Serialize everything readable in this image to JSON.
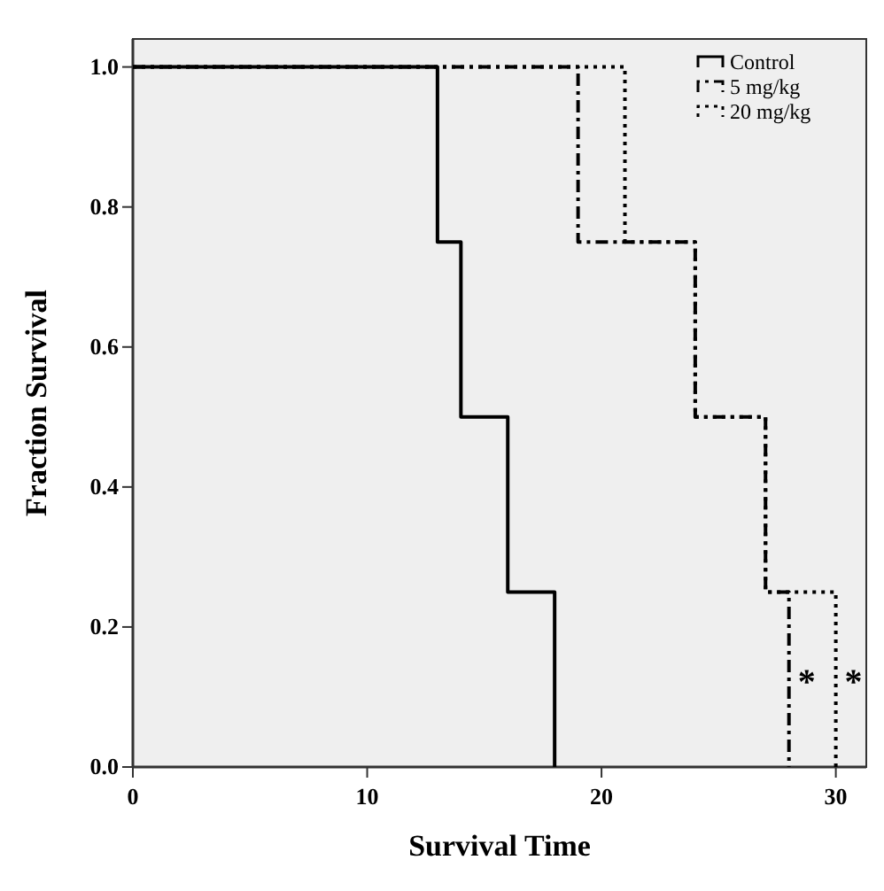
{
  "chart_data": {
    "type": "step",
    "xlabel": "Survival Time",
    "ylabel": "Fraction Survival",
    "xlim": [
      0,
      31.3
    ],
    "ylim": [
      0,
      1.04
    ],
    "xticks": [
      0,
      10,
      20,
      30
    ],
    "yticks": [
      {
        "value": 0,
        "label": "0.0"
      },
      {
        "value": 0.2,
        "label": "0.2"
      },
      {
        "value": 0.4,
        "label": "0.4"
      },
      {
        "value": 0.6,
        "label": "0.6"
      },
      {
        "value": 0.8,
        "label": "0.8"
      },
      {
        "value": 1,
        "label": "1.0"
      }
    ],
    "grid": false,
    "legend": "top right",
    "series": [
      {
        "name": "Control",
        "color": "#000000",
        "line_style": "solid",
        "x": [
          0,
          13,
          14,
          16,
          18
        ],
        "values": [
          1,
          0.75,
          0.5,
          0.25,
          0
        ]
      },
      {
        "name": "5 mg/kg",
        "color": "#000000",
        "line_style": "dashed",
        "x": [
          0,
          19,
          24,
          27,
          28
        ],
        "values": [
          1,
          0.75,
          0.5,
          0.25,
          0
        ]
      },
      {
        "name": "20 mg/kg",
        "color": "#000000",
        "line_style": "dotted",
        "x": [
          0,
          21,
          24,
          27,
          30
        ],
        "values": [
          1,
          0.75,
          0.5,
          0.25,
          0
        ]
      }
    ],
    "annotations": [
      "*",
      "*"
    ]
  }
}
